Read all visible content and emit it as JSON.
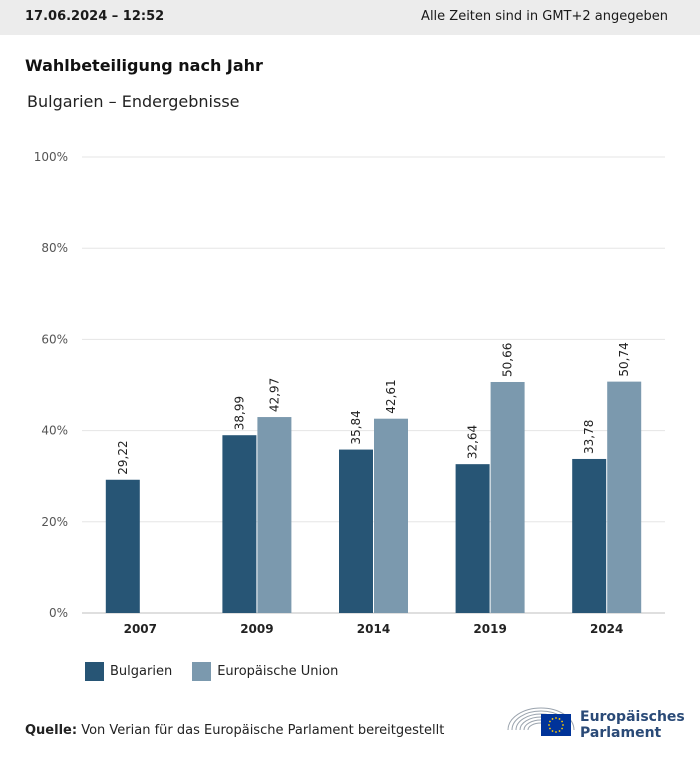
{
  "header": {
    "datetime": "17.06.2024 – 12:52",
    "timezone_note": "Alle Zeiten sind in GMT+2 angegeben"
  },
  "title": "Wahlbeteiligung nach Jahr",
  "subtitle": "Bulgarien – Endergebnisse",
  "legend": {
    "bulgaria": "Bulgarien",
    "eu": "Europäische Union"
  },
  "source": {
    "label": "Quelle:",
    "text": "Von Verian für das Europäische Parlament bereitgestellt"
  },
  "logo": {
    "line1": "Europäisches",
    "line2": "Parlament"
  },
  "colors": {
    "bulgaria": "#275575",
    "eu": "#7b99ae",
    "grid": "#e5e5e5",
    "axis": "#bfbfbf",
    "brand": "#2a4a77",
    "eu_flag": "#003399",
    "eu_star": "#ffcc00"
  },
  "chart_data": {
    "type": "bar",
    "categories": [
      "2007",
      "2009",
      "2014",
      "2019",
      "2024"
    ],
    "series": [
      {
        "name": "Bulgarien",
        "values": [
          29.22,
          38.99,
          35.84,
          32.64,
          33.78
        ]
      },
      {
        "name": "Europäische Union",
        "values": [
          null,
          42.97,
          42.61,
          50.66,
          50.74
        ]
      }
    ],
    "data_labels": [
      [
        "29,22",
        "38,99",
        "35,84",
        "32,64",
        "33,78"
      ],
      [
        "",
        "42,97",
        "42,61",
        "50,66",
        "50,74"
      ]
    ],
    "y_ticks": [
      "0%",
      "20%",
      "40%",
      "60%",
      "80%",
      "100%"
    ],
    "ylim": [
      0,
      100
    ],
    "grid": true,
    "legend_position": "bottom-left"
  }
}
